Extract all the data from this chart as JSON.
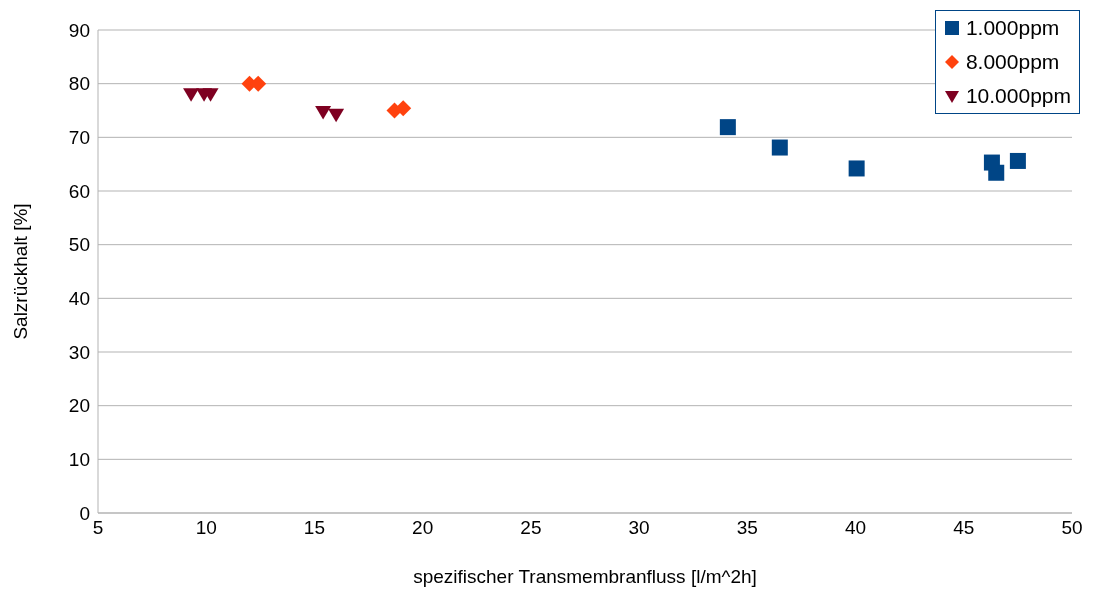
{
  "chart_data": {
    "type": "scatter",
    "xlabel": "spezifischer Transmembranfluss [l/m^2h]",
    "ylabel": "Salzrückhalt [%]",
    "xlim": [
      5,
      50
    ],
    "xticks": [
      5,
      10,
      15,
      20,
      25,
      30,
      35,
      40,
      45,
      50
    ],
    "ylim": [
      0,
      90
    ],
    "yticks": [
      0,
      10,
      20,
      30,
      40,
      50,
      60,
      70,
      80,
      90
    ],
    "grid": "y",
    "legend": "top right",
    "series": [
      {
        "name": "1.000ppm",
        "color": "#004586",
        "marker": "square",
        "x": [
          34.1,
          36.5,
          40.05,
          46.3,
          46.5,
          47.5
        ],
        "values": [
          71.9,
          68.1,
          64.2,
          65.3,
          63.4,
          65.6
        ]
      },
      {
        "name": "8.000ppm",
        "color": "#ff420e",
        "marker": "diamond",
        "x": [
          12.0,
          12.4,
          18.7,
          19.1
        ],
        "values": [
          80.0,
          80.0,
          75.0,
          75.4
        ]
      },
      {
        "name": "10.000ppm",
        "color": "#7e0021",
        "marker": "triangle",
        "x": [
          9.3,
          9.9,
          10.2,
          15.4,
          16.0
        ],
        "values": [
          78.1,
          78.1,
          78.1,
          74.8,
          74.3
        ]
      }
    ]
  }
}
